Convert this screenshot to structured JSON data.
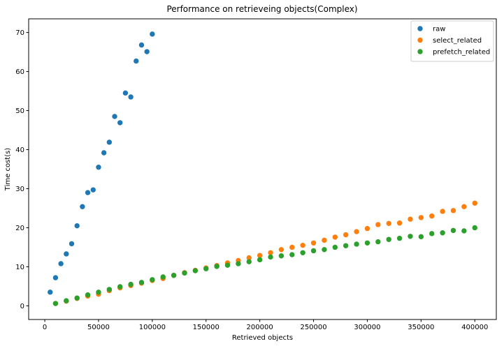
{
  "chart_data": {
    "type": "scatter",
    "title": "Performance on retrieveing objects(Complex)",
    "xlabel": "Retrieved objects",
    "ylabel": "Time cost(s)",
    "xlim": [
      -15000,
      420000
    ],
    "ylim": [
      -3.5,
      73.5
    ],
    "xticks": [
      0,
      50000,
      100000,
      150000,
      200000,
      250000,
      300000,
      350000,
      400000
    ],
    "xtick_labels": [
      "0",
      "50000",
      "100000",
      "150000",
      "200000",
      "250000",
      "300000",
      "350000",
      "400000"
    ],
    "yticks": [
      0,
      10,
      20,
      30,
      40,
      50,
      60,
      70
    ],
    "ytick_labels": [
      "0",
      "10",
      "20",
      "30",
      "40",
      "50",
      "60",
      "70"
    ],
    "grid": false,
    "legend_position": "top-right",
    "series": [
      {
        "name": "raw",
        "color": "#1f77b4",
        "x": [
          5000,
          10000,
          15000,
          20000,
          25000,
          30000,
          35000,
          40000,
          45000,
          50000,
          55000,
          60000,
          65000,
          70000,
          75000,
          80000,
          85000,
          90000,
          95000,
          100000
        ],
        "y": [
          3.5,
          7.2,
          10.8,
          13.3,
          15.9,
          20.5,
          25.4,
          29.0,
          29.7,
          35.5,
          39.2,
          41.9,
          48.5,
          46.9,
          54.5,
          53.5,
          62.7,
          66.8,
          65.1,
          69.6
        ]
      },
      {
        "name": "select_related",
        "color": "#ff7f0e",
        "x": [
          10000,
          20000,
          30000,
          40000,
          50000,
          60000,
          70000,
          80000,
          90000,
          100000,
          110000,
          120000,
          130000,
          140000,
          150000,
          160000,
          170000,
          180000,
          190000,
          200000,
          210000,
          220000,
          230000,
          240000,
          250000,
          260000,
          270000,
          280000,
          290000,
          300000,
          310000,
          320000,
          330000,
          340000,
          350000,
          360000,
          370000,
          380000,
          390000,
          400000
        ],
        "y": [
          0.6,
          1.2,
          1.9,
          2.5,
          3.0,
          3.9,
          4.6,
          5.2,
          5.8,
          6.5,
          7.0,
          7.8,
          8.5,
          9.1,
          9.7,
          10.3,
          11.0,
          11.6,
          12.3,
          12.9,
          13.6,
          14.4,
          15.0,
          15.5,
          16.1,
          16.8,
          17.6,
          18.2,
          19.0,
          19.8,
          20.8,
          21.1,
          21.2,
          22.2,
          22.6,
          23.0,
          24.2,
          24.4,
          25.4,
          26.3
        ]
      },
      {
        "name": "prefetch_related",
        "color": "#2ca02c",
        "x": [
          10000,
          20000,
          30000,
          40000,
          50000,
          60000,
          70000,
          80000,
          90000,
          100000,
          110000,
          120000,
          130000,
          140000,
          150000,
          160000,
          170000,
          180000,
          190000,
          200000,
          210000,
          220000,
          230000,
          240000,
          250000,
          260000,
          270000,
          280000,
          290000,
          300000,
          310000,
          320000,
          330000,
          340000,
          350000,
          360000,
          370000,
          380000,
          390000,
          400000
        ],
        "y": [
          0.6,
          1.3,
          2.0,
          2.8,
          3.5,
          4.2,
          4.9,
          5.5,
          6.0,
          6.7,
          7.4,
          7.8,
          8.4,
          9.0,
          9.5,
          10.1,
          10.4,
          10.8,
          11.3,
          11.8,
          12.5,
          12.8,
          13.1,
          13.6,
          14.1,
          14.4,
          15.0,
          15.4,
          15.8,
          16.1,
          16.4,
          17.0,
          17.3,
          17.8,
          17.7,
          18.5,
          18.7,
          19.3,
          19.2,
          20.0
        ]
      }
    ]
  }
}
